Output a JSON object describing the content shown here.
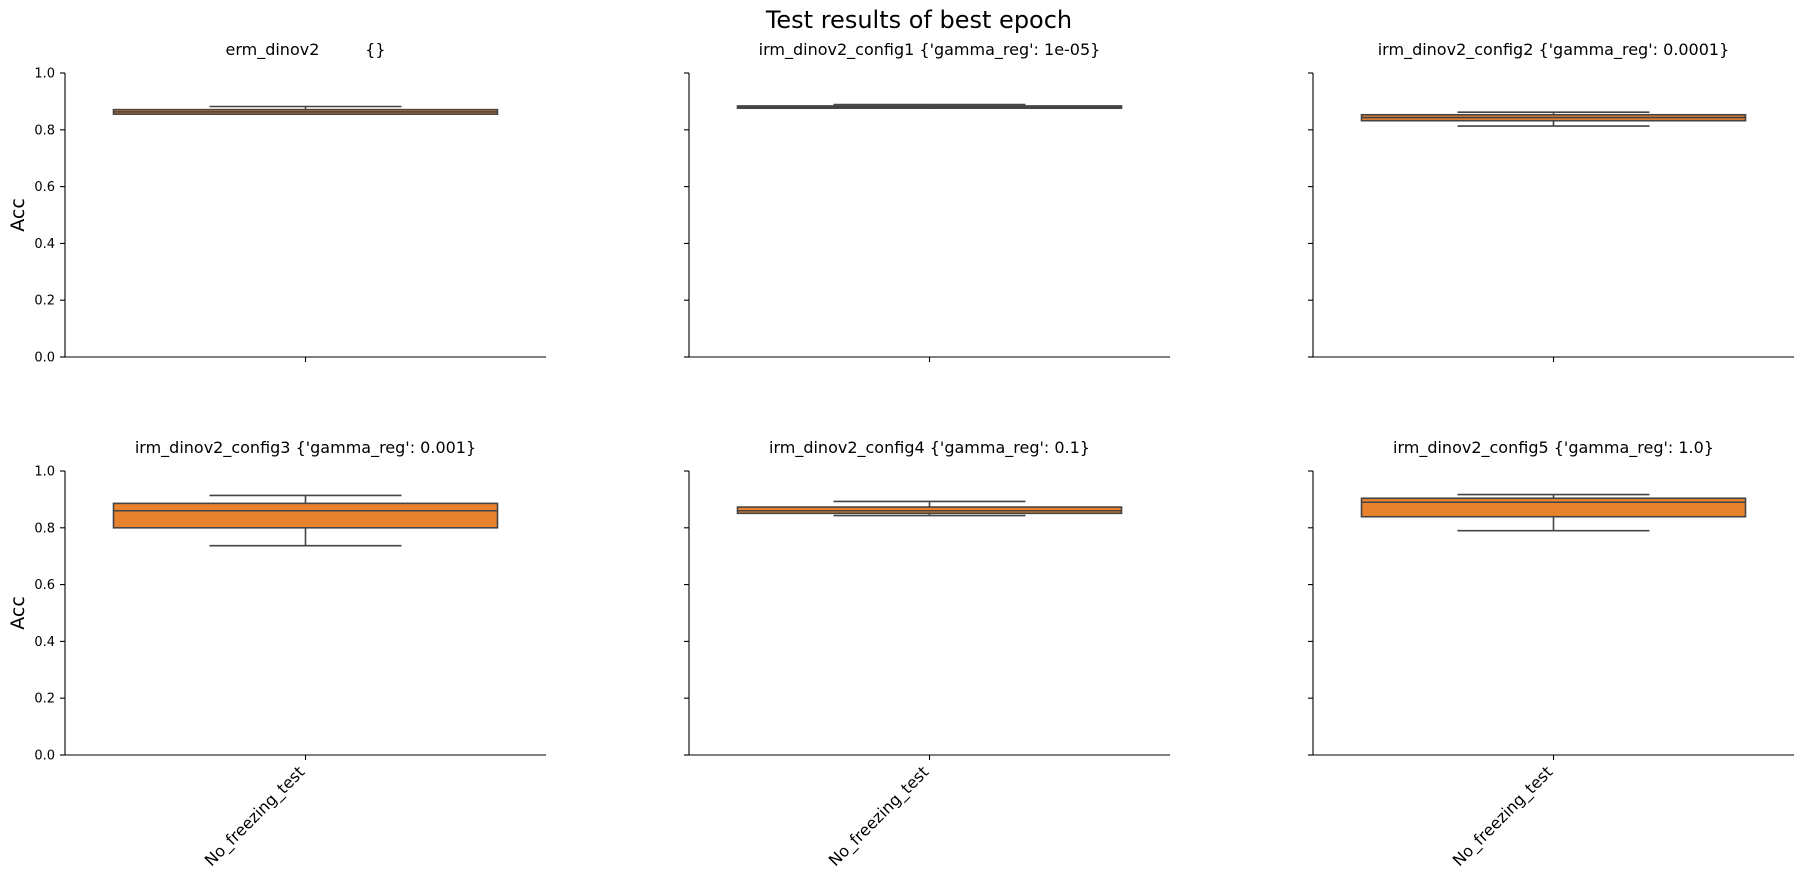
{
  "chart_data": {
    "type": "box",
    "title": "Test results of best epoch",
    "ylabel": "Acc",
    "ylim": [
      0,
      1
    ],
    "yticks": [
      "0.0",
      "0.2",
      "0.4",
      "0.6",
      "0.8",
      "1.0"
    ],
    "grid": false,
    "colors": {
      "box_fill": "#e8822e",
      "line": "#444444",
      "axis": "#000000"
    },
    "panels": [
      {
        "title": "erm_dinov2         {}",
        "category": "No_freezing_test",
        "whisker_low": 0.855,
        "q1": 0.855,
        "median": 0.863,
        "q3": 0.871,
        "whisker_high": 0.882
      },
      {
        "title": "irm_dinov2_config1 {'gamma_reg': 1e-05}",
        "category": "No_freezing_test",
        "whisker_low": 0.876,
        "q1": 0.876,
        "median": 0.881,
        "q3": 0.884,
        "whisker_high": 0.889
      },
      {
        "title": "irm_dinov2_config2 {'gamma_reg': 0.0001}",
        "category": "No_freezing_test",
        "whisker_low": 0.813,
        "q1": 0.832,
        "median": 0.843,
        "q3": 0.853,
        "whisker_high": 0.862
      },
      {
        "title": "irm_dinov2_config3 {'gamma_reg': 0.001}",
        "category": "No_freezing_test",
        "whisker_low": 0.737,
        "q1": 0.8,
        "median": 0.86,
        "q3": 0.886,
        "whisker_high": 0.914
      },
      {
        "title": "irm_dinov2_config4 {'gamma_reg': 0.1}",
        "category": "No_freezing_test",
        "whisker_low": 0.843,
        "q1": 0.851,
        "median": 0.86,
        "q3": 0.873,
        "whisker_high": 0.893
      },
      {
        "title": "irm_dinov2_config5 {'gamma_reg': 1.0}",
        "category": "No_freezing_test",
        "whisker_low": 0.79,
        "q1": 0.839,
        "median": 0.89,
        "q3": 0.904,
        "whisker_high": 0.917
      }
    ]
  }
}
